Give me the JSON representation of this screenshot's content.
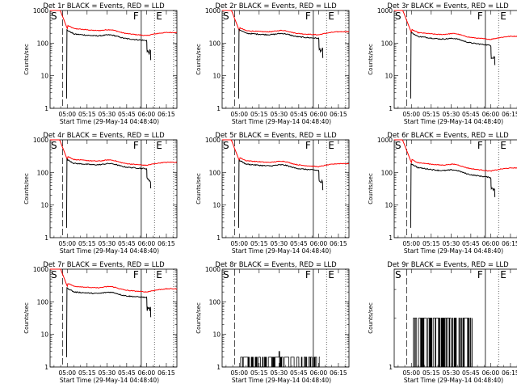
{
  "figure": {
    "x_tick_labels": [
      "05:00",
      "05:15",
      "05:30",
      "05:45",
      "06:00",
      "06:15"
    ],
    "x_tick_minutes": [
      0,
      15,
      30,
      45,
      60,
      75
    ],
    "x_range_minutes": [
      -13,
      83
    ],
    "y_tick_labels": [
      "1",
      "10",
      "100",
      "1000"
    ],
    "y_range": [
      1,
      1000
    ],
    "ylabel": "Counts/sec",
    "xlabel": "Start Time (29-May-14 04:48:40)",
    "marker_labels": {
      "start": "S",
      "finish": "F",
      "end": "E"
    },
    "markers_minutes": {
      "S": -11.5,
      "dashed": -3.5,
      "F": 56,
      "E": 66,
      "dotted_end": 80.5
    },
    "colors": {
      "events": "#000000",
      "lld": "#ff0000",
      "axes": "#000000"
    }
  },
  "chart_data": [
    {
      "type": "line",
      "title": "Det 1r BLACK = Events, RED = LLD",
      "ylabel": "Counts/sec",
      "xlabel": "Start Time (29-May-14 04:48:40)",
      "ylog": true,
      "ylim": [
        1,
        1000
      ],
      "series": [
        {
          "name": "RED = LLD",
          "kind": "lld",
          "red_level": 280,
          "red_end": 170,
          "bump": 1.0
        },
        {
          "name": "BLACK = Events",
          "kind": "events",
          "black_level": 190,
          "black_end": 120,
          "bump": 1.0
        }
      ]
    },
    {
      "type": "line",
      "title": "Det 2r BLACK = Events, RED = LLD",
      "ylabel": "Counts/sec",
      "xlabel": "Start Time (29-May-14 04:48:40)",
      "ylog": true,
      "ylim": [
        1,
        1000
      ],
      "series": [
        {
          "name": "RED = LLD",
          "kind": "lld",
          "red_level": 240,
          "red_end": 180,
          "bump": 1.0
        },
        {
          "name": "BLACK = Events",
          "kind": "events",
          "black_level": 200,
          "black_end": 140,
          "bump": 1.0
        }
      ]
    },
    {
      "type": "line",
      "title": "Det 3r BLACK = Events, RED = LLD",
      "ylabel": "Counts/sec",
      "xlabel": "Start Time (29-May-14 04:48:40)",
      "ylog": true,
      "ylim": [
        1,
        1000
      ],
      "series": [
        {
          "name": "RED = LLD",
          "kind": "lld",
          "red_level": 210,
          "red_end": 130,
          "bump": 1.05
        },
        {
          "name": "BLACK = Events",
          "kind": "events",
          "black_level": 160,
          "black_end": 85,
          "bump": 1.05
        }
      ]
    },
    {
      "type": "line",
      "title": "Det 4r BLACK = Events, RED = LLD",
      "ylabel": "Counts/sec",
      "xlabel": "Start Time (29-May-14 04:48:40)",
      "ylog": true,
      "ylim": [
        1,
        1000
      ],
      "series": [
        {
          "name": "RED = LLD",
          "kind": "lld",
          "red_level": 250,
          "red_end": 165,
          "bump": 1.05
        },
        {
          "name": "BLACK = Events",
          "kind": "events",
          "black_level": 190,
          "black_end": 130,
          "bump": 1.05
        }
      ]
    },
    {
      "type": "line",
      "title": "Det 5r BLACK = Events, RED = LLD",
      "ylabel": "Counts/sec",
      "xlabel": "Start Time (29-May-14 04:48:40)",
      "ylog": true,
      "ylim": [
        1,
        1000
      ],
      "series": [
        {
          "name": "RED = LLD",
          "kind": "lld",
          "red_level": 230,
          "red_end": 150,
          "bump": 1.05
        },
        {
          "name": "BLACK = Events",
          "kind": "events",
          "black_level": 180,
          "black_end": 115,
          "bump": 1.05
        }
      ]
    },
    {
      "type": "line",
      "title": "Det 6r BLACK = Events, RED = LLD",
      "ylabel": "Counts/sec",
      "xlabel": "Start Time (29-May-14 04:48:40)",
      "ylog": true,
      "ylim": [
        1,
        1000
      ],
      "series": [
        {
          "name": "RED = LLD",
          "kind": "lld",
          "red_level": 200,
          "red_end": 110,
          "bump": 1.1
        },
        {
          "name": "BLACK = Events",
          "kind": "events",
          "black_level": 140,
          "black_end": 70,
          "bump": 1.1
        }
      ]
    },
    {
      "type": "line",
      "title": "Det 7r BLACK = Events, RED = LLD",
      "ylabel": "Counts/sec",
      "xlabel": "Start Time (29-May-14 04:48:40)",
      "ylog": true,
      "ylim": [
        1,
        1000
      ],
      "series": [
        {
          "name": "RED = LLD",
          "kind": "lld",
          "red_level": 300,
          "red_end": 200,
          "bump": 1.1
        },
        {
          "name": "BLACK = Events",
          "kind": "events",
          "black_level": 200,
          "black_end": 135,
          "bump": 1.1
        }
      ]
    },
    {
      "type": "line",
      "title": "Det 8r BLACK = Events, RED = LLD",
      "ylabel": "Counts/sec",
      "xlabel": "Start Time (29-May-14 04:48:40)",
      "ylog": true,
      "ylim": [
        1,
        1000
      ],
      "series": [
        {
          "name": "BLACK = Events",
          "kind": "sparse",
          "x_start": 1,
          "x_end": 61,
          "low": 1,
          "high": 2,
          "spike_x": 30,
          "spike_value": 3
        }
      ]
    },
    {
      "type": "line",
      "title": "Det 9r BLACK = Events, RED = LLD",
      "ylabel": "Counts/sec",
      "xlabel": "Start Time (29-May-14 04:48:40)",
      "ylog": true,
      "ylim": [
        1,
        4
      ],
      "series": [
        {
          "name": "BLACK = Events",
          "kind": "sparse",
          "x_start": 1,
          "x_end": 46,
          "low": 1,
          "high": 2
        }
      ]
    }
  ]
}
